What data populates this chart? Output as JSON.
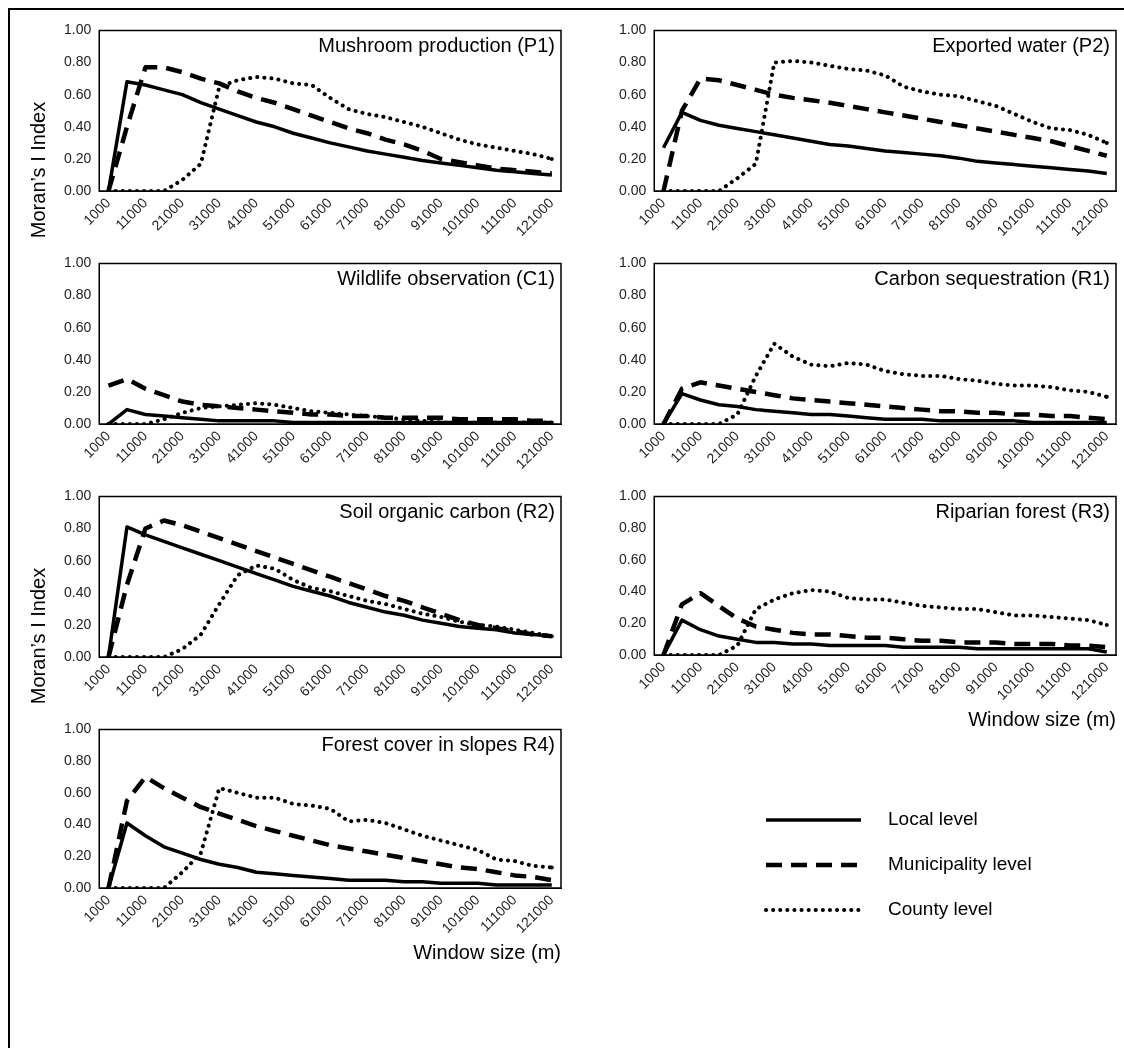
{
  "chart_data": [
    {
      "type": "line",
      "title": "Mushroom production (P1)",
      "ylabel": "Moran’s I Index",
      "marker": "none",
      "categories": [
        "1000",
        null,
        "11000",
        null,
        "21000",
        null,
        "31000",
        null,
        "41000",
        null,
        "51000",
        null,
        "61000",
        null,
        "71000",
        null,
        "81000",
        null,
        "91000",
        null,
        "101000",
        null,
        "111000",
        null,
        "121000"
      ],
      "ylim": [
        0,
        1
      ],
      "yticks": [
        {
          "value": 0,
          "label": "0.00"
        },
        {
          "value": 0.2,
          "label": "0.20"
        },
        {
          "value": 0.4,
          "label": "0.40"
        },
        {
          "value": 0.6,
          "label": "0.60"
        },
        {
          "value": 0.8,
          "label": "0.80"
        },
        {
          "value": 1,
          "label": "1.00"
        }
      ],
      "series": [
        {
          "color": "#000000",
          "line_style": "solid",
          "values": [
            0,
            0.68,
            0.66,
            0.63,
            0.6,
            0.55,
            0.51,
            0.47,
            0.43,
            0.4,
            0.36,
            0.33,
            0.3,
            0.275,
            0.25,
            0.23,
            0.21,
            0.19,
            0.175,
            0.16,
            0.145,
            0.13,
            0.12,
            0.11,
            0.1
          ]
        },
        {
          "color": "#000000",
          "line_style": "dashed",
          "values": [
            0,
            0.4,
            0.77,
            0.77,
            0.74,
            0.7,
            0.67,
            0.62,
            0.58,
            0.55,
            0.51,
            0.47,
            0.43,
            0.39,
            0.36,
            0.32,
            0.29,
            0.25,
            0.2,
            0.18,
            0.16,
            0.14,
            0.13,
            0.12,
            0.11
          ]
        },
        {
          "color": "#000000",
          "line_style": "dotted",
          "values": [
            0,
            0,
            0,
            0,
            0.07,
            0.17,
            0.65,
            0.69,
            0.71,
            0.7,
            0.67,
            0.66,
            0.58,
            0.51,
            0.48,
            0.46,
            0.43,
            0.4,
            0.36,
            0.32,
            0.29,
            0.27,
            0.25,
            0.23,
            0.2
          ]
        }
      ]
    },
    {
      "type": "line",
      "title": "Exported water (P2)",
      "marker": "none",
      "categories": [
        "1000",
        null,
        "11000",
        null,
        "21000",
        null,
        "31000",
        null,
        "41000",
        null,
        "51000",
        null,
        "61000",
        null,
        "71000",
        null,
        "81000",
        null,
        "91000",
        null,
        "101000",
        null,
        "111000",
        null,
        "121000"
      ],
      "ylim": [
        0,
        1
      ],
      "yticks": [
        {
          "value": 0,
          "label": "0.00"
        },
        {
          "value": 0.2,
          "label": "0.20"
        },
        {
          "value": 0.4,
          "label": "0.40"
        },
        {
          "value": 0.6,
          "label": "0.60"
        },
        {
          "value": 0.8,
          "label": "0.80"
        },
        {
          "value": 1,
          "label": "1.00"
        }
      ],
      "series": [
        {
          "color": "#000000",
          "line_style": "solid",
          "values": [
            0.27,
            0.49,
            0.44,
            0.41,
            0.39,
            0.37,
            0.35,
            0.33,
            0.31,
            0.29,
            0.28,
            0.265,
            0.25,
            0.24,
            0.23,
            0.22,
            0.205,
            0.185,
            0.175,
            0.165,
            0.155,
            0.145,
            0.135,
            0.125,
            0.11
          ]
        },
        {
          "color": "#000000",
          "line_style": "dashed",
          "values": [
            0,
            0.5,
            0.7,
            0.69,
            0.66,
            0.63,
            0.6,
            0.58,
            0.565,
            0.55,
            0.53,
            0.51,
            0.49,
            0.47,
            0.45,
            0.43,
            0.41,
            0.39,
            0.37,
            0.35,
            0.33,
            0.31,
            0.28,
            0.25,
            0.22
          ]
        },
        {
          "color": "#000000",
          "line_style": "dotted",
          "values": [
            0,
            0,
            0,
            0,
            0.08,
            0.17,
            0.8,
            0.81,
            0.8,
            0.78,
            0.76,
            0.75,
            0.72,
            0.65,
            0.62,
            0.6,
            0.59,
            0.56,
            0.53,
            0.48,
            0.43,
            0.39,
            0.38,
            0.35,
            0.3
          ]
        }
      ]
    },
    {
      "type": "line",
      "title": "Wildlife observation (C1)",
      "marker": "none",
      "categories": [
        "1000",
        null,
        "11000",
        null,
        "21000",
        null,
        "31000",
        null,
        "41000",
        null,
        "51000",
        null,
        "61000",
        null,
        "71000",
        null,
        "81000",
        null,
        "91000",
        null,
        "101000",
        null,
        "111000",
        null,
        "121000"
      ],
      "ylim": [
        0,
        1
      ],
      "yticks": [
        {
          "value": 0,
          "label": "0.00"
        },
        {
          "value": 0.2,
          "label": "0.20"
        },
        {
          "value": 0.4,
          "label": "0.40"
        },
        {
          "value": 0.6,
          "label": "0.60"
        },
        {
          "value": 0.8,
          "label": "0.80"
        },
        {
          "value": 1,
          "label": "1.00"
        }
      ],
      "series": [
        {
          "color": "#000000",
          "line_style": "solid",
          "values": [
            0,
            0.09,
            0.06,
            0.05,
            0.04,
            0.03,
            0.02,
            0.02,
            0.02,
            0.02,
            0.01,
            0.01,
            0.01,
            0.01,
            0.01,
            0.01,
            0.01,
            0.01,
            0.01,
            0.01,
            0.01,
            0.01,
            0.01,
            0.01,
            0.01
          ]
        },
        {
          "color": "#000000",
          "line_style": "dashed",
          "values": [
            0.24,
            0.28,
            0.22,
            0.18,
            0.14,
            0.12,
            0.11,
            0.1,
            0.09,
            0.08,
            0.07,
            0.06,
            0.06,
            0.05,
            0.05,
            0.04,
            0.04,
            0.04,
            0.04,
            0.03,
            0.03,
            0.03,
            0.03,
            0.02,
            0.02
          ]
        },
        {
          "color": "#000000",
          "line_style": "dotted",
          "values": [
            0,
            0,
            0,
            0.03,
            0.07,
            0.1,
            0.11,
            0.12,
            0.13,
            0.12,
            0.1,
            0.08,
            0.07,
            0.06,
            0.05,
            0.04,
            0.03,
            0.02,
            0.01,
            0.01,
            0.01,
            0.01,
            0.01,
            0.01,
            0.01
          ]
        }
      ]
    },
    {
      "type": "line",
      "title": "Carbon sequestration (R1)",
      "marker": "none",
      "categories": [
        "1000",
        null,
        "11000",
        null,
        "21000",
        null,
        "31000",
        null,
        "41000",
        null,
        "51000",
        null,
        "61000",
        null,
        "71000",
        null,
        "81000",
        null,
        "91000",
        null,
        "101000",
        null,
        "111000",
        null,
        "121000"
      ],
      "ylim": [
        0,
        1
      ],
      "yticks": [
        {
          "value": 0,
          "label": "0.00"
        },
        {
          "value": 0.2,
          "label": "0.20"
        },
        {
          "value": 0.4,
          "label": "0.40"
        },
        {
          "value": 0.6,
          "label": "0.60"
        },
        {
          "value": 0.8,
          "label": "0.80"
        },
        {
          "value": 1,
          "label": "1.00"
        }
      ],
      "series": [
        {
          "color": "#000000",
          "line_style": "solid",
          "values": [
            0,
            0.19,
            0.15,
            0.12,
            0.11,
            0.09,
            0.08,
            0.07,
            0.06,
            0.06,
            0.05,
            0.04,
            0.03,
            0.03,
            0.03,
            0.02,
            0.02,
            0.02,
            0.02,
            0.02,
            0.01,
            0.01,
            0.01,
            0.01,
            0.01
          ]
        },
        {
          "color": "#000000",
          "line_style": "dashed",
          "values": [
            0,
            0.22,
            0.26,
            0.24,
            0.22,
            0.2,
            0.18,
            0.16,
            0.15,
            0.14,
            0.13,
            0.12,
            0.11,
            0.1,
            0.09,
            0.08,
            0.08,
            0.07,
            0.07,
            0.06,
            0.06,
            0.05,
            0.05,
            0.04,
            0.03
          ]
        },
        {
          "color": "#000000",
          "line_style": "dotted",
          "values": [
            0,
            0,
            0,
            0,
            0.06,
            0.3,
            0.5,
            0.42,
            0.37,
            0.36,
            0.38,
            0.37,
            0.33,
            0.31,
            0.3,
            0.3,
            0.28,
            0.27,
            0.25,
            0.24,
            0.24,
            0.23,
            0.21,
            0.2,
            0.17
          ]
        }
      ]
    },
    {
      "type": "line",
      "title": "Soil organic carbon (R2)",
      "ylabel": "Moran’s I Index",
      "marker": "none",
      "categories": [
        "1000",
        null,
        "11000",
        null,
        "21000",
        null,
        "31000",
        null,
        "41000",
        null,
        "51000",
        null,
        "61000",
        null,
        "71000",
        null,
        "81000",
        null,
        "91000",
        null,
        "101000",
        null,
        "111000",
        null,
        "121000"
      ],
      "ylim": [
        0,
        1
      ],
      "yticks": [
        {
          "value": 0,
          "label": "0.00"
        },
        {
          "value": 0.2,
          "label": "0.20"
        },
        {
          "value": 0.4,
          "label": "0.40"
        },
        {
          "value": 0.6,
          "label": "0.60"
        },
        {
          "value": 0.8,
          "label": "0.80"
        },
        {
          "value": 1,
          "label": "1.00"
        }
      ],
      "series": [
        {
          "color": "#000000",
          "line_style": "solid",
          "values": [
            0,
            0.81,
            0.76,
            0.72,
            0.68,
            0.64,
            0.6,
            0.56,
            0.52,
            0.48,
            0.44,
            0.41,
            0.38,
            0.34,
            0.31,
            0.28,
            0.26,
            0.23,
            0.21,
            0.19,
            0.18,
            0.17,
            0.15,
            0.14,
            0.13
          ]
        },
        {
          "color": "#000000",
          "line_style": "dashed",
          "values": [
            0,
            0.45,
            0.8,
            0.85,
            0.82,
            0.78,
            0.74,
            0.7,
            0.66,
            0.62,
            0.58,
            0.54,
            0.5,
            0.46,
            0.42,
            0.38,
            0.35,
            0.31,
            0.27,
            0.23,
            0.2,
            0.18,
            0.16,
            0.14,
            0.13
          ]
        },
        {
          "color": "#000000",
          "line_style": "dotted",
          "values": [
            0,
            0,
            0,
            0,
            0.05,
            0.14,
            0.33,
            0.51,
            0.57,
            0.55,
            0.48,
            0.43,
            0.41,
            0.38,
            0.35,
            0.33,
            0.3,
            0.27,
            0.25,
            0.22,
            0.2,
            0.19,
            0.17,
            0.15,
            0.13
          ]
        }
      ]
    },
    {
      "type": "line",
      "title": "Riparian forest (R3)",
      "xlabel": "Window size (m)",
      "marker": "none",
      "categories": [
        "1000",
        null,
        "11000",
        null,
        "21000",
        null,
        "31000",
        null,
        "41000",
        null,
        "51000",
        null,
        "61000",
        null,
        "71000",
        null,
        "81000",
        null,
        "91000",
        null,
        "101000",
        null,
        "111000",
        null,
        "121000"
      ],
      "ylim": [
        0,
        1
      ],
      "yticks": [
        {
          "value": 0,
          "label": "0.00"
        },
        {
          "value": 0.2,
          "label": "0.20"
        },
        {
          "value": 0.4,
          "label": "0.40"
        },
        {
          "value": 0.6,
          "label": "0.60"
        },
        {
          "value": 0.8,
          "label": "0.80"
        },
        {
          "value": 1,
          "label": "1.00"
        }
      ],
      "series": [
        {
          "color": "#000000",
          "line_style": "solid",
          "values": [
            0,
            0.22,
            0.16,
            0.12,
            0.1,
            0.08,
            0.08,
            0.07,
            0.07,
            0.06,
            0.06,
            0.06,
            0.06,
            0.05,
            0.05,
            0.05,
            0.05,
            0.04,
            0.04,
            0.04,
            0.04,
            0.04,
            0.04,
            0.04,
            0.02
          ]
        },
        {
          "color": "#000000",
          "line_style": "dashed",
          "values": [
            0,
            0.32,
            0.39,
            0.31,
            0.23,
            0.18,
            0.16,
            0.14,
            0.13,
            0.13,
            0.12,
            0.11,
            0.11,
            0.1,
            0.09,
            0.09,
            0.08,
            0.08,
            0.08,
            0.07,
            0.07,
            0.07,
            0.06,
            0.06,
            0.05
          ]
        },
        {
          "color": "#000000",
          "line_style": "dotted",
          "values": [
            0,
            0,
            0,
            0,
            0.06,
            0.29,
            0.35,
            0.39,
            0.41,
            0.4,
            0.36,
            0.35,
            0.35,
            0.33,
            0.31,
            0.3,
            0.29,
            0.29,
            0.27,
            0.25,
            0.25,
            0.24,
            0.23,
            0.22,
            0.19
          ]
        }
      ]
    },
    {
      "type": "line",
      "title": "Forest cover in slopes R4)",
      "xlabel": "Window size (m)",
      "marker": "none",
      "legend": "right",
      "categories": [
        "1000",
        null,
        "11000",
        null,
        "21000",
        null,
        "31000",
        null,
        "41000",
        null,
        "51000",
        null,
        "61000",
        null,
        "71000",
        null,
        "81000",
        null,
        "91000",
        null,
        "101000",
        null,
        "111000",
        null,
        "121000"
      ],
      "ylim": [
        0,
        1
      ],
      "yticks": [
        {
          "value": 0,
          "label": "0.00"
        },
        {
          "value": 0.2,
          "label": "0.20"
        },
        {
          "value": 0.4,
          "label": "0.40"
        },
        {
          "value": 0.6,
          "label": "0.60"
        },
        {
          "value": 0.8,
          "label": "0.80"
        },
        {
          "value": 1,
          "label": "1.00"
        }
      ],
      "series": [
        {
          "name": "Local level",
          "color": "#000000",
          "line_style": "solid",
          "values": [
            0,
            0.41,
            0.33,
            0.26,
            0.22,
            0.18,
            0.15,
            0.13,
            0.1,
            0.09,
            0.08,
            0.07,
            0.06,
            0.05,
            0.05,
            0.05,
            0.04,
            0.04,
            0.03,
            0.03,
            0.03,
            0.02,
            0.02,
            0.02,
            0.02
          ]
        },
        {
          "name": "Municipality level",
          "color": "#000000",
          "line_style": "dashed",
          "values": [
            0,
            0.55,
            0.7,
            0.63,
            0.57,
            0.51,
            0.47,
            0.43,
            0.39,
            0.36,
            0.33,
            0.3,
            0.27,
            0.25,
            0.23,
            0.21,
            0.19,
            0.17,
            0.15,
            0.13,
            0.12,
            0.1,
            0.08,
            0.07,
            0.05
          ]
        },
        {
          "name": "County level",
          "color": "#000000",
          "line_style": "dotted",
          "values": [
            0,
            0,
            0,
            0,
            0.1,
            0.22,
            0.63,
            0.6,
            0.57,
            0.57,
            0.53,
            0.52,
            0.5,
            0.42,
            0.43,
            0.41,
            0.37,
            0.33,
            0.3,
            0.27,
            0.24,
            0.18,
            0.17,
            0.14,
            0.13
          ]
        }
      ]
    }
  ]
}
